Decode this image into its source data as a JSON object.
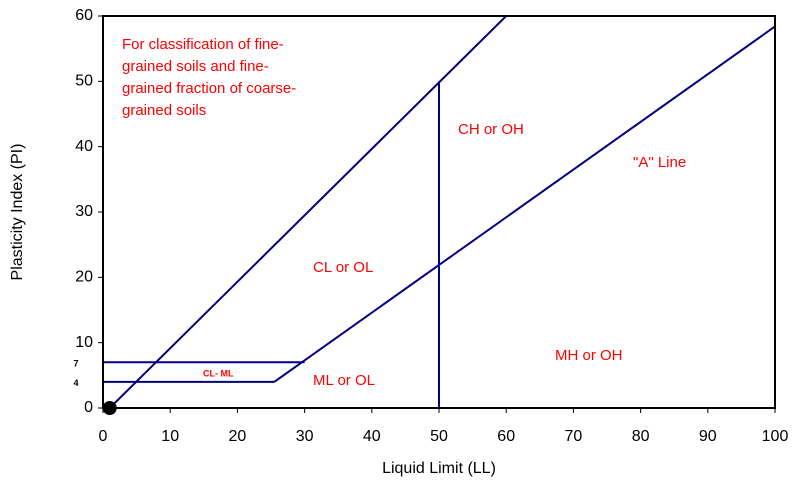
{
  "chart_data": {
    "type": "line",
    "x_label": "Liquid Limit (LL)",
    "y_label": "Plasticity Index (PI)",
    "xlim": [
      0,
      100
    ],
    "ylim": [
      0,
      60
    ],
    "xticks": [
      0,
      10,
      20,
      30,
      40,
      50,
      60,
      70,
      80,
      90,
      100
    ],
    "yticks": [
      0,
      10,
      20,
      30,
      40,
      50,
      60
    ],
    "extra_yticks": [
      7,
      4
    ],
    "line_color": "#000080",
    "series": [
      {
        "x": [
          25.5,
          100
        ],
        "values": [
          4,
          58.4
        ]
      },
      {
        "x": [
          1,
          60
        ],
        "values": [
          0,
          60
        ]
      },
      {
        "x": [
          50,
          50
        ],
        "values": [
          0,
          50
        ]
      },
      {
        "x": [
          0,
          30
        ],
        "values": [
          7,
          7
        ]
      },
      {
        "x": [
          0,
          25.5
        ],
        "values": [
          4,
          4
        ]
      }
    ],
    "points": {
      "x": [
        1
      ],
      "values": [
        0
      ]
    },
    "note_lines": [
      "For classification of fine-",
      "grained soils and fine-",
      "grained fraction of coarse-",
      "grained soils"
    ],
    "annotations": [
      "CH or OH",
      "\"A\" Line",
      "CL or OL",
      "CL- ML",
      "ML or OL",
      "MH or OH"
    ]
  }
}
